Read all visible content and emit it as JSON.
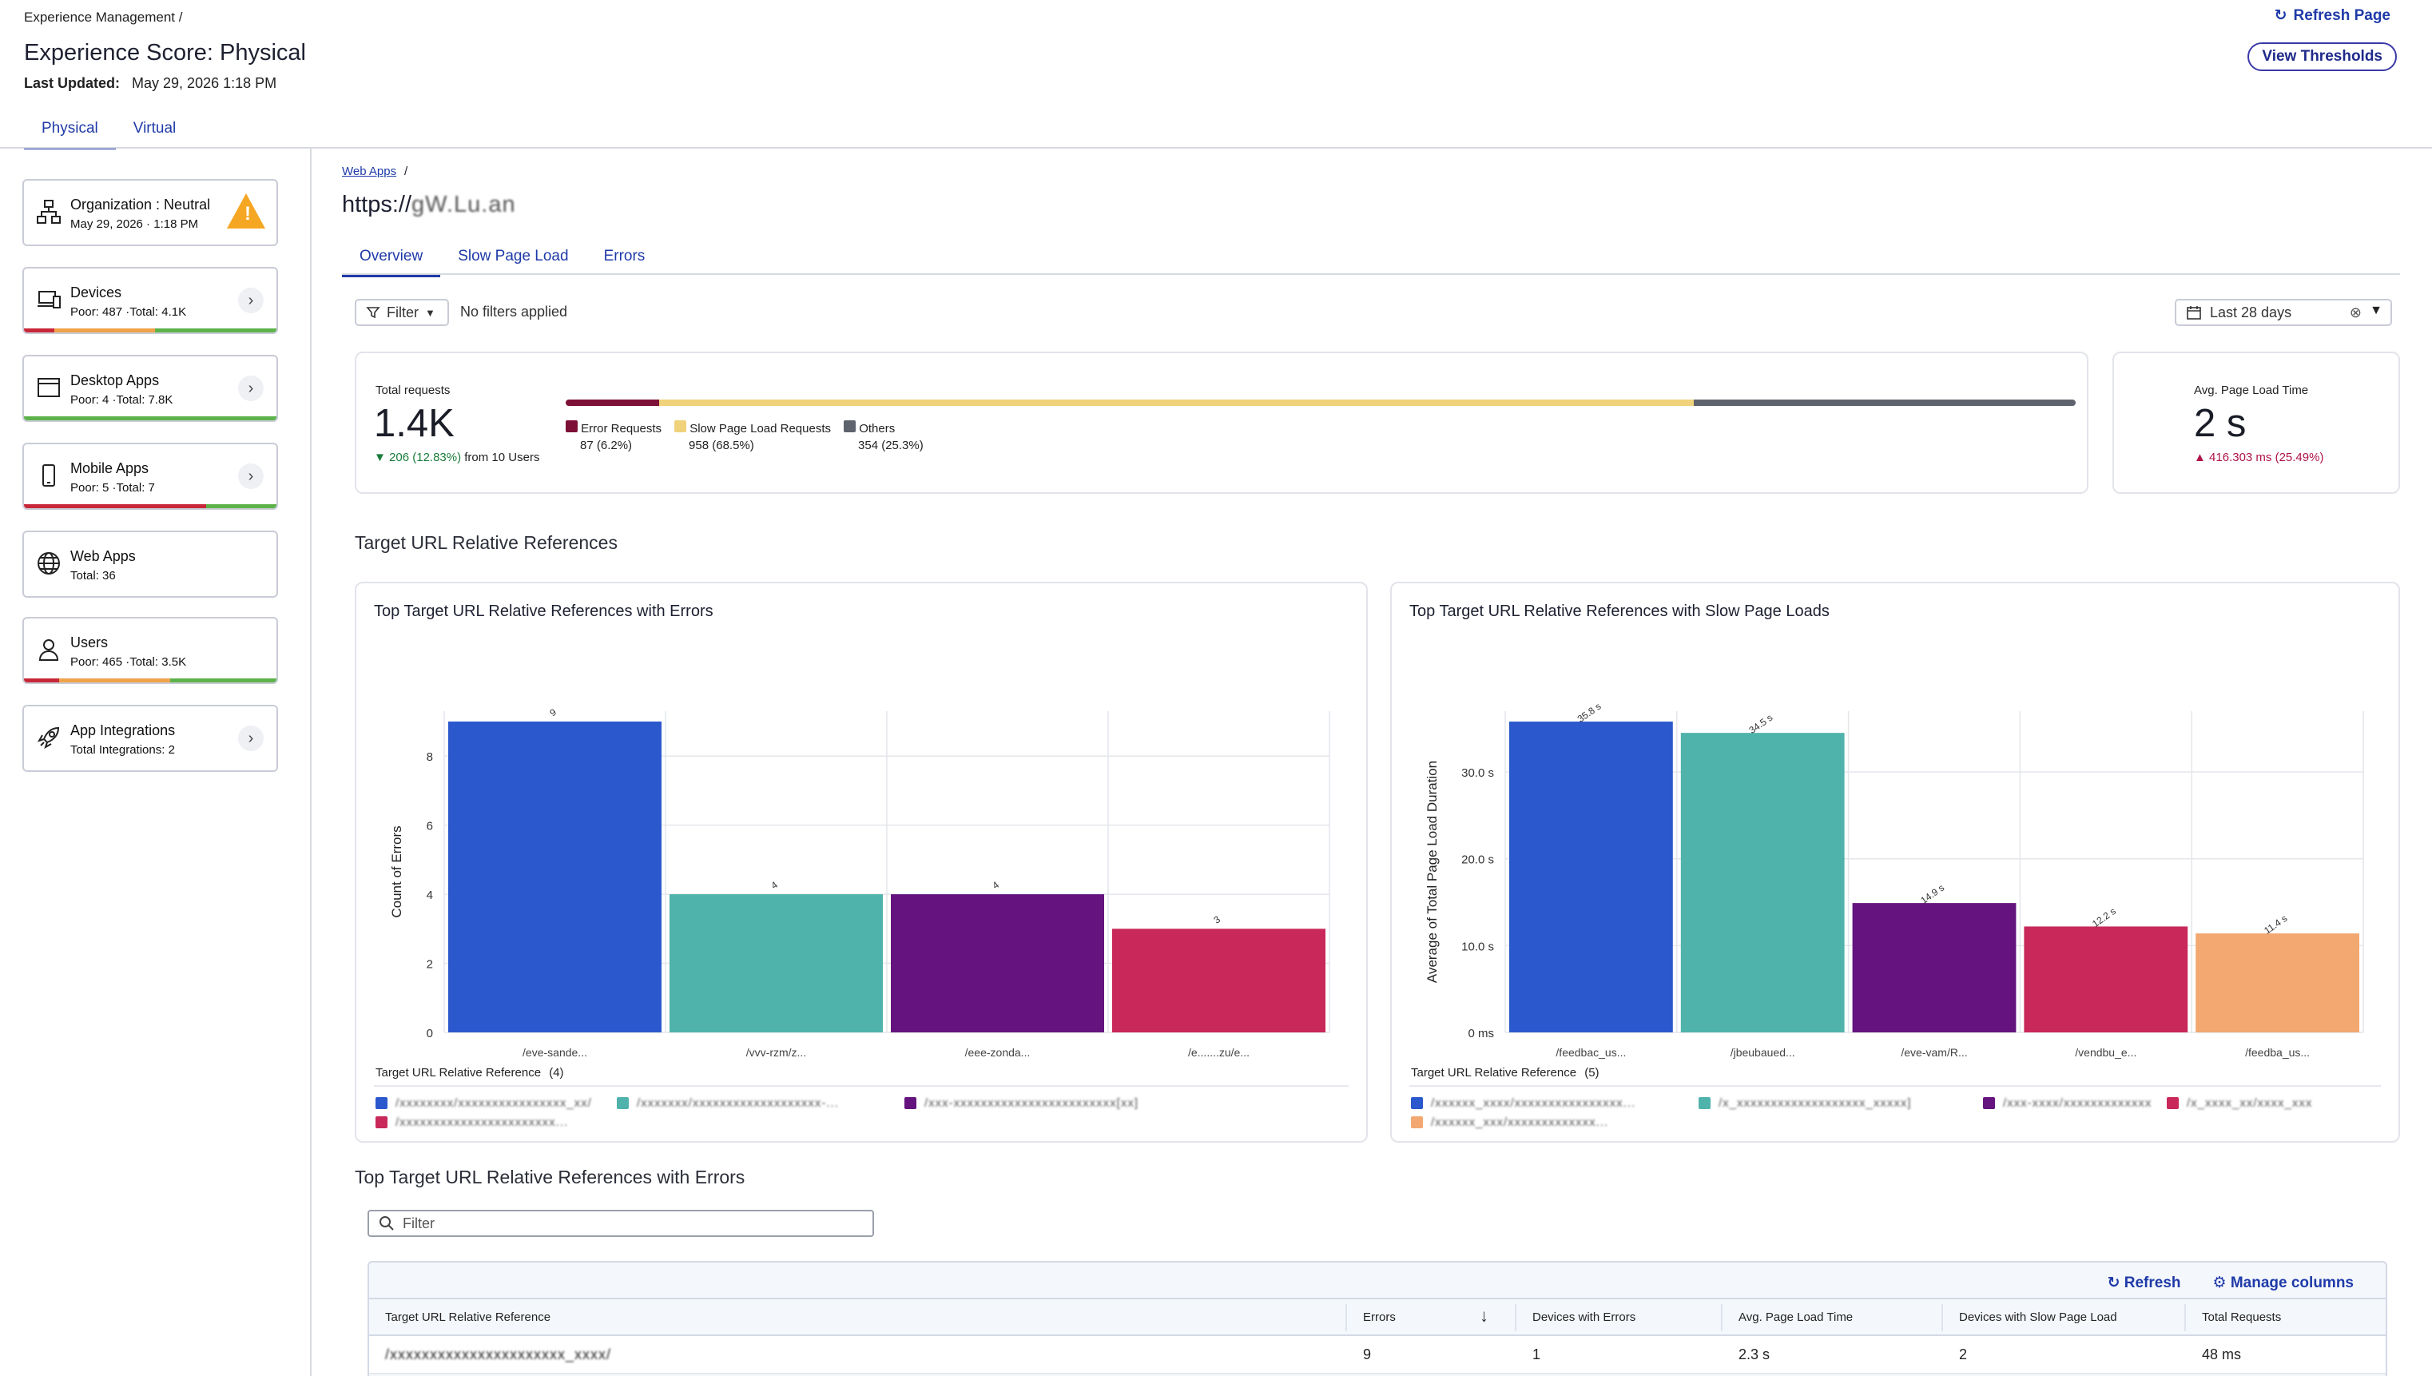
{
  "header": {
    "breadcrumb": "Experience Management  /",
    "title": "Experience Score: Physical",
    "last_updated_label": "Last Updated:",
    "last_updated_value": "May 29, 2026 1:18 PM",
    "refresh_label": "Refresh Page",
    "view_thresholds_label": "View Thresholds",
    "tabs": [
      "Physical",
      "Virtual"
    ]
  },
  "sidebar": {
    "items": [
      {
        "title": "Organization : Neutral",
        "subtitle": "May 29, 2026 · 1:18 PM",
        "icon": "org-chart-icon"
      },
      {
        "title": "Devices",
        "subtitle": "Poor: 487 ·Total: 4.1K",
        "icon": "devices-icon"
      },
      {
        "title": "Desktop Apps",
        "subtitle": "Poor: 4 ·Total: 7.8K",
        "icon": "desktop-window-icon"
      },
      {
        "title": "Mobile Apps",
        "subtitle": "Poor: 5 ·Total: 7",
        "icon": "mobile-phone-icon"
      },
      {
        "title": "Web Apps",
        "subtitle": "Total: 36",
        "icon": "globe-icon"
      },
      {
        "title": "Users",
        "subtitle": "Poor: 465 ·Total: 3.5K",
        "icon": "user-icon"
      },
      {
        "title": "App Integrations",
        "subtitle": "Total Integrations: 2",
        "icon": "rocket-icon"
      }
    ]
  },
  "main": {
    "breadcrumb": "Web Apps",
    "url_title": "https://",
    "tabs": [
      "Overview",
      "Slow Page Load",
      "Errors"
    ],
    "filter_label": "Filter",
    "no_filters": "No filters applied",
    "date_range": "Last 28 days",
    "total_requests": {
      "label": "Total requests",
      "value": "1.4K",
      "delta": "206 (12.83%)",
      "delta_suffix": "from 10 Users",
      "segments": [
        {
          "name": "Error Requests",
          "value": "87 (6.2%)",
          "pct": 6.2,
          "color": "#7c1036"
        },
        {
          "name": "Slow Page Load Requests",
          "value": "958 (68.5%)",
          "pct": 68.5,
          "color": "#f0d27a"
        },
        {
          "name": "Others",
          "value": "354 (25.3%)",
          "pct": 25.3,
          "color": "#5f636e"
        }
      ]
    },
    "avg_load": {
      "label": "Avg. Page Load Time",
      "value": "2 s",
      "delta": "416.303 ms (25.49%)"
    },
    "section_title": "Target URL Relative References",
    "table_title": "Top Target URL Relative References with Errors",
    "table_filter_placeholder": "Filter",
    "table_refresh": "Refresh",
    "table_manage": "Manage columns",
    "table_columns": [
      "Target URL Relative Reference",
      "Errors",
      "Devices with Errors",
      "Avg. Page Load Time",
      "Devices with Slow Page Load",
      "Total Requests"
    ],
    "table_rows": [
      [
        "",
        "9",
        "1",
        "2.3 s",
        "2",
        "48 ms"
      ]
    ]
  },
  "chart_data": [
    {
      "type": "bar",
      "title": "Top Target URL Relative References with Errors",
      "xlabel": "Target URL Relative Reference",
      "ylabel": "Count of Errors",
      "categories": [
        "/eve-sande...",
        "/vvv-rzm/z...",
        "/eee-zonda...",
        "/e.......zu/e..."
      ],
      "values": [
        9,
        4,
        4,
        3
      ],
      "data_labels": [
        "9",
        "4",
        "4",
        "3"
      ],
      "colors": [
        "#2b58cc",
        "#4fb3ab",
        "#65147f",
        "#c8285a"
      ],
      "yticks": [
        0,
        2,
        4,
        6,
        8
      ],
      "ylim": [
        0,
        9.3
      ],
      "legend_title": "Target URL Relative Reference",
      "legend_count": "(4)",
      "legend_items": [
        "/xxxxxxxx/xxxxxxxxxxxxxxxx_xx/",
        "/xxxxxxx/xxxxxxxxxxxxxxxxxxx-...",
        "/xxx-xxxxxxxxxxxxxxxxxxxxxxxx[xx]",
        "/xxxxxxxxxxxxxxxxxxxxxxx..."
      ],
      "grid": true
    },
    {
      "type": "bar",
      "title": "Top Target URL Relative References with Slow Page Loads",
      "xlabel": "Target URL Relative Reference",
      "ylabel": "Average of Total Page Load Duration",
      "categories": [
        "/feedbac_us...",
        "/jbeubaued...",
        "/eve-vam/R...",
        "/vendbu_e...",
        "/feedba_us..."
      ],
      "values": [
        35.8,
        34.5,
        14.9,
        12.2,
        11.4
      ],
      "data_labels": [
        "35.8 s",
        "34.5 s",
        "14.9 s",
        "12.2 s",
        "11.4 s"
      ],
      "colors": [
        "#2b58cc",
        "#4fb3ab",
        "#65147f",
        "#c8285a",
        "#f2a870"
      ],
      "yticks": [
        0,
        10,
        20,
        30
      ],
      "ytick_labels": [
        "0 ms",
        "10.0 s",
        "20.0 s",
        "30.0 s"
      ],
      "ylim": [
        0,
        37
      ],
      "legend_title": "Target URL Relative Reference",
      "legend_count": "(5)",
      "legend_items": [
        "/xxxxxx_xxxx/xxxxxxxxxxxxxxxx...",
        "/x_xxxxxxxxxxxxxxxxxxx_xxxxx]",
        "/xxx-xxxx/xxxxxxxxxxxxx",
        "/x_xxxx_xx/xxxx_xxx",
        "/xxxxxx_xxx/xxxxxxxxxxxxx..."
      ],
      "grid": true
    }
  ]
}
